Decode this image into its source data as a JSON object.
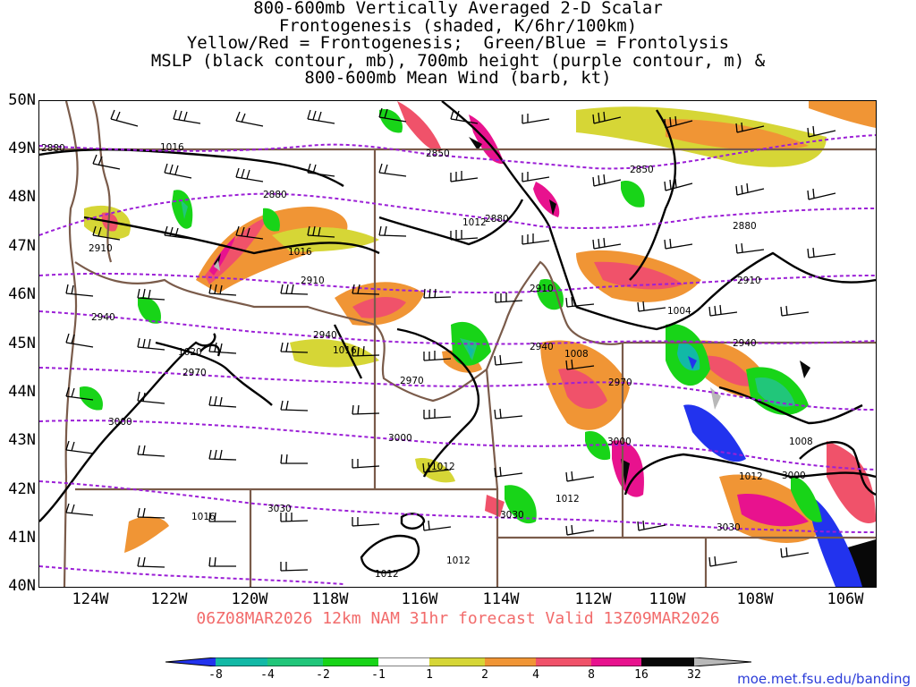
{
  "title": {
    "lines": [
      "800-600mb Vertically Averaged 2-D Scalar",
      "Frontogenesis (shaded, K/6hr/100km)",
      "Yellow/Red = Frontogenesis;  Green/Blue = Frontolysis",
      "MSLP (black contour, mb), 700mb height (purple contour, m) &",
      "800-600mb Mean Wind (barb, kt)"
    ]
  },
  "axes": {
    "lat_labels": [
      "50N",
      "49N",
      "48N",
      "47N",
      "46N",
      "45N",
      "44N",
      "43N",
      "42N",
      "41N",
      "40N"
    ],
    "lon_labels": [
      "124W",
      "122W",
      "120W",
      "118W",
      "116W",
      "114W",
      "112W",
      "110W",
      "108W",
      "106W"
    ],
    "lat_range": [
      40,
      50
    ],
    "lon_range": [
      -125.1,
      -105.1
    ]
  },
  "valid_line": "06Z08MAR2026 12km NAM 31hr forecast Valid 13Z09MAR2026",
  "colorbar": {
    "labels": [
      "-8",
      "-4",
      "-2",
      "-1",
      "1",
      "2",
      "4",
      "8",
      "16",
      "32"
    ],
    "colors": [
      "#2233ee",
      "#12b9a6",
      "#21c67a",
      "#18d418",
      "#ffffff",
      "#d6d636",
      "#f09535",
      "#f0526a",
      "#e8128e",
      "#080808",
      "#b8b8b8"
    ]
  },
  "contours": {
    "mslp_labels": [
      "1016",
      "1016",
      "1012",
      "1020",
      "1016",
      "1012",
      "1008",
      "1004",
      "1008",
      "1012",
      "1012",
      "1016",
      "1012",
      "1012"
    ],
    "height_labels": [
      "2880",
      "2850",
      "2850",
      "2880",
      "2880",
      "2910",
      "2910",
      "2910",
      "2910",
      "2880",
      "2940",
      "2940",
      "2940",
      "2940",
      "2970",
      "2970",
      "2970",
      "3000",
      "3000",
      "3000",
      "3000",
      "3030",
      "3030",
      "3030"
    ]
  },
  "credit": "moe.met.fsu.edu/banding"
}
